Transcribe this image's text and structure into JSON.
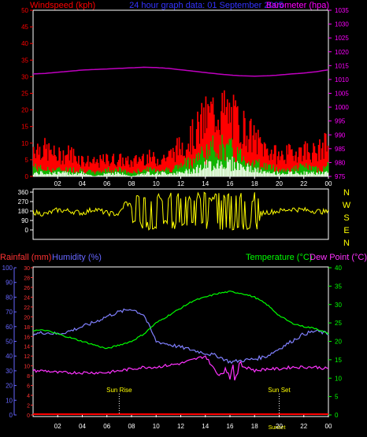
{
  "header": {
    "left": "Windspeed (kph)",
    "center": "24 hour graph data: 01 September 2005",
    "right": "Barometer (hpa)"
  },
  "colors": {
    "frame": "#ffffff",
    "wind_axis": "#ff0000",
    "baro_axis": "#ff00ff",
    "gust": "#ff0000",
    "avg_wind": "#00c000",
    "low_wind": "#e6ffe6",
    "barometer": "#c000c0",
    "direction": "#ffff00",
    "rain": "#ff0000",
    "humidity": "#8080ff",
    "temperature": "#00ff00",
    "dew_point": "#ff33ff",
    "humidity_axis": "#6666ff",
    "rain_axis": "#ff3333",
    "temp_axis": "#00ff00",
    "time_axis": "#ffffff",
    "sun_label": "#ffff00",
    "header_center": "#3333ff"
  },
  "chart_data": [
    {
      "type": "area",
      "panel": "wind_barometer",
      "x_ticks": [
        "02",
        "04",
        "06",
        "08",
        "10",
        "12",
        "14",
        "16",
        "18",
        "20",
        "22",
        "00"
      ],
      "xlim": [
        0,
        24
      ],
      "xlabel": "",
      "y_left": {
        "label": "Windspeed (kph)",
        "ylim": [
          0,
          50
        ],
        "ticks": [
          0,
          5,
          10,
          15,
          20,
          25,
          30,
          35,
          40,
          45,
          50
        ]
      },
      "y_right": {
        "label": "Barometer (hpa)",
        "ylim": [
          975,
          1035
        ],
        "ticks": [
          975,
          980,
          985,
          990,
          995,
          1000,
          1005,
          1010,
          1015,
          1020,
          1025,
          1030,
          1035
        ]
      },
      "hours": [
        0,
        1,
        2,
        3,
        4,
        5,
        6,
        7,
        8,
        9,
        10,
        11,
        12,
        13,
        14,
        15,
        16,
        17,
        18,
        19,
        20,
        21,
        22,
        23,
        24
      ],
      "series": [
        {
          "name": "Windspeed (kph)",
          "axis": "left",
          "values": [
            9,
            8,
            6,
            7,
            5,
            4,
            5,
            5,
            4,
            6,
            5,
            6,
            9,
            12,
            17,
            20,
            18,
            15,
            11,
            8,
            6,
            7,
            8,
            7,
            10
          ]
        },
        {
          "name": "",
          "axis": "left",
          "values": [
            3,
            2,
            2,
            2,
            2,
            1,
            2,
            2,
            1,
            2,
            2,
            2,
            3,
            5,
            7,
            9,
            8,
            6,
            4,
            3,
            2,
            2,
            3,
            2,
            3
          ]
        },
        {
          "name": "",
          "axis": "left",
          "values": [
            1,
            1,
            1,
            1,
            1,
            0,
            1,
            1,
            0,
            1,
            1,
            1,
            1,
            2,
            3,
            4,
            4,
            3,
            2,
            1,
            1,
            1,
            1,
            1,
            1
          ]
        },
        {
          "name": "Barometer (hpa)",
          "axis": "right",
          "values": [
            1012,
            1012.2,
            1012.6,
            1013,
            1013.4,
            1013.6,
            1013.8,
            1014,
            1014.2,
            1014.4,
            1014.3,
            1014,
            1013.5,
            1013,
            1012.5,
            1012,
            1011.6,
            1011.3,
            1011.2,
            1011.3,
            1011.6,
            1012,
            1012.3,
            1012.8,
            1013.5
          ]
        }
      ]
    },
    {
      "type": "scatter",
      "panel": "wind_direction",
      "x_ticks": [
        "02",
        "04",
        "06",
        "08",
        "10",
        "12",
        "14",
        "16",
        "18",
        "20",
        "22",
        "00"
      ],
      "xlim": [
        0,
        24
      ],
      "xlabel": "",
      "y_left": {
        "label": "",
        "ylim": [
          0,
          360
        ],
        "ticks": [
          0,
          90,
          180,
          270,
          360
        ]
      },
      "y_right": {
        "label": "",
        "ticks": [
          "N",
          "W",
          "S",
          "E",
          "N"
        ]
      },
      "hours": [
        0,
        1,
        2,
        3,
        4,
        5,
        6,
        7,
        7.5,
        8,
        9,
        10,
        11,
        12,
        13,
        14,
        15,
        16,
        17,
        18,
        19,
        20,
        21,
        22,
        23,
        24
      ],
      "series": [
        {
          "name": "",
          "values": [
            170,
            150,
            190,
            180,
            160,
            200,
            160,
            150,
            260,
            230,
            240,
            180,
            200,
            170,
            220,
            160,
            230,
            200,
            180,
            150,
            170,
            180,
            200,
            190,
            180,
            170
          ]
        }
      ]
    },
    {
      "type": "line",
      "panel": "rain_humidity_temp",
      "x_ticks": [
        "02",
        "04",
        "06",
        "08",
        "10",
        "12",
        "14",
        "16",
        "18",
        "20",
        "22",
        "00"
      ],
      "xlim": [
        0,
        24
      ],
      "xlabel": "",
      "y_left_humidity": {
        "label": "Humidity (%)",
        "ylim": [
          0,
          100
        ],
        "ticks": [
          0,
          10,
          20,
          30,
          40,
          50,
          60,
          70,
          80,
          90,
          100
        ]
      },
      "y_left_rain": {
        "label": "Rainfall (mm)",
        "ylim": [
          0,
          30
        ],
        "ticks": [
          0,
          2,
          4,
          6,
          8,
          10,
          12,
          14,
          16,
          18,
          20,
          22,
          24,
          26,
          28,
          30
        ]
      },
      "y_right": {
        "label": "Temperature (°C)",
        "ylim": [
          0,
          40
        ],
        "ticks": [
          0,
          5,
          10,
          15,
          20,
          25,
          30,
          35,
          40
        ]
      },
      "right_label_extra": "Dew Point (°C)",
      "hours": [
        0,
        1,
        2,
        3,
        4,
        5,
        6,
        7,
        8,
        9,
        10,
        11,
        12,
        13,
        14,
        15,
        16,
        17,
        18,
        19,
        20,
        21,
        22,
        23,
        24
      ],
      "series": [
        {
          "name": "Humidity (%)",
          "values": [
            55,
            56,
            55,
            57,
            60,
            63,
            67,
            70,
            72,
            68,
            50,
            48,
            46,
            44,
            42,
            40,
            36,
            37,
            38,
            40,
            45,
            50,
            55,
            57,
            55
          ]
        },
        {
          "name": "Temperature (°C)",
          "values": [
            23,
            23,
            22,
            21,
            20,
            19,
            18,
            19,
            20,
            22,
            25,
            27,
            29,
            31,
            32,
            33,
            33.5,
            33,
            32,
            30,
            27,
            25,
            24,
            23.5,
            22
          ]
        },
        {
          "name": "Dew Point (°C)",
          "values": [
            12,
            12,
            11.5,
            11.5,
            11.5,
            11.5,
            11.5,
            12,
            12.5,
            13,
            13,
            13.5,
            14,
            15,
            16,
            11,
            12,
            14,
            12,
            12.5,
            12.5,
            13,
            13,
            13,
            12.5
          ]
        },
        {
          "name": "Rainfall (mm)",
          "values": [
            0,
            0,
            0,
            0,
            0,
            0,
            0,
            0,
            0,
            0,
            0,
            0,
            0,
            0,
            0,
            0,
            0,
            0,
            0,
            0,
            0,
            0,
            0,
            0,
            0
          ]
        }
      ],
      "annotations": [
        {
          "label": "Sun Rise",
          "x": 7
        },
        {
          "label": "Sun Set",
          "x": 20
        },
        {
          "label": "Sunset",
          "x": 20
        }
      ]
    }
  ]
}
